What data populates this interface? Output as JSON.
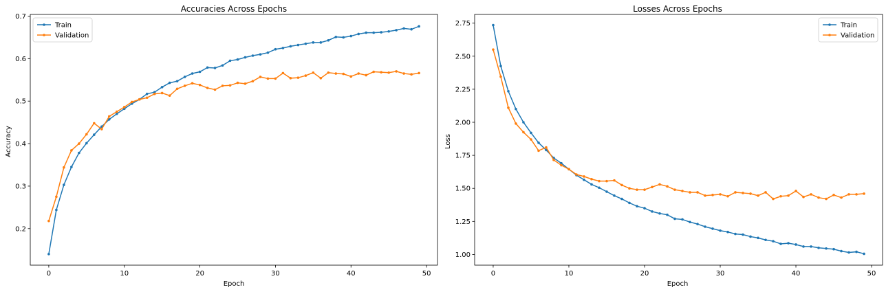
{
  "colors": {
    "train": "#1f77b4",
    "validation": "#ff7f0e"
  },
  "chart_data": [
    {
      "type": "line",
      "title": "Accuracies Across Epochs",
      "xlabel": "Epoch",
      "ylabel": "Accuracy",
      "xlim": [
        -2.45,
        51.45
      ],
      "ylim": [
        0.114,
        0.704
      ],
      "xticks": [
        0,
        10,
        20,
        30,
        40,
        50
      ],
      "yticks": [
        0.2,
        0.3,
        0.4,
        0.5,
        0.6,
        0.7
      ],
      "yticklabels": [
        "0.2",
        "0.3",
        "0.4",
        "0.5",
        "0.6",
        "0.7"
      ],
      "legend": "upper-left",
      "grid": false,
      "x": [
        0,
        1,
        2,
        3,
        4,
        5,
        6,
        7,
        8,
        9,
        10,
        11,
        12,
        13,
        14,
        15,
        16,
        17,
        18,
        19,
        20,
        21,
        22,
        23,
        24,
        25,
        26,
        27,
        28,
        29,
        30,
        31,
        32,
        33,
        34,
        35,
        36,
        37,
        38,
        39,
        40,
        41,
        42,
        43,
        44,
        45,
        46,
        47,
        48,
        49
      ],
      "series": [
        {
          "name": "Train",
          "color": "#1f77b4",
          "values": [
            0.14,
            0.244,
            0.303,
            0.345,
            0.378,
            0.401,
            0.421,
            0.44,
            0.457,
            0.47,
            0.482,
            0.494,
            0.504,
            0.517,
            0.521,
            0.533,
            0.543,
            0.547,
            0.557,
            0.565,
            0.569,
            0.579,
            0.578,
            0.584,
            0.595,
            0.598,
            0.603,
            0.607,
            0.61,
            0.614,
            0.622,
            0.625,
            0.629,
            0.632,
            0.635,
            0.638,
            0.638,
            0.643,
            0.651,
            0.65,
            0.653,
            0.658,
            0.661,
            0.661,
            0.662,
            0.664,
            0.667,
            0.671,
            0.669,
            0.676
          ]
        },
        {
          "name": "Validation",
          "color": "#ff7f0e",
          "values": [
            0.218,
            0.275,
            0.344,
            0.384,
            0.4,
            0.422,
            0.448,
            0.434,
            0.464,
            0.475,
            0.486,
            0.498,
            0.504,
            0.508,
            0.517,
            0.519,
            0.513,
            0.529,
            0.536,
            0.542,
            0.538,
            0.531,
            0.527,
            0.536,
            0.537,
            0.543,
            0.541,
            0.547,
            0.557,
            0.553,
            0.553,
            0.566,
            0.554,
            0.555,
            0.56,
            0.567,
            0.554,
            0.567,
            0.565,
            0.564,
            0.558,
            0.565,
            0.561,
            0.569,
            0.568,
            0.567,
            0.57,
            0.565,
            0.563,
            0.566
          ]
        }
      ]
    },
    {
      "type": "line",
      "title": "Losses Across Epochs",
      "xlabel": "Epoch",
      "ylabel": "Loss",
      "xlim": [
        -2.45,
        51.45
      ],
      "ylim": [
        0.919,
        2.816
      ],
      "xticks": [
        0,
        10,
        20,
        30,
        40,
        50
      ],
      "yticks": [
        1.0,
        1.25,
        1.5,
        1.75,
        2.0,
        2.25,
        2.5,
        2.75
      ],
      "yticklabels": [
        "1.00",
        "1.25",
        "1.50",
        "1.75",
        "2.00",
        "2.25",
        "2.50",
        "2.75"
      ],
      "legend": "upper-right",
      "grid": false,
      "x": [
        0,
        1,
        2,
        3,
        4,
        5,
        6,
        7,
        8,
        9,
        10,
        11,
        12,
        13,
        14,
        15,
        16,
        17,
        18,
        19,
        20,
        21,
        22,
        23,
        24,
        25,
        26,
        27,
        28,
        29,
        30,
        31,
        32,
        33,
        34,
        35,
        36,
        37,
        38,
        39,
        40,
        41,
        42,
        43,
        44,
        45,
        46,
        47,
        48,
        49
      ],
      "series": [
        {
          "name": "Train",
          "color": "#1f77b4",
          "values": [
            2.735,
            2.425,
            2.235,
            2.1,
            2.0,
            1.92,
            1.845,
            1.79,
            1.73,
            1.69,
            1.645,
            1.6,
            1.565,
            1.53,
            1.505,
            1.475,
            1.445,
            1.42,
            1.39,
            1.365,
            1.35,
            1.325,
            1.31,
            1.3,
            1.27,
            1.265,
            1.245,
            1.23,
            1.21,
            1.195,
            1.18,
            1.17,
            1.155,
            1.15,
            1.135,
            1.125,
            1.11,
            1.1,
            1.08,
            1.085,
            1.075,
            1.06,
            1.06,
            1.05,
            1.045,
            1.04,
            1.025,
            1.015,
            1.02,
            1.005
          ]
        },
        {
          "name": "Validation",
          "color": "#ff7f0e",
          "values": [
            2.55,
            2.345,
            2.11,
            1.99,
            1.925,
            1.87,
            1.785,
            1.81,
            1.715,
            1.675,
            1.645,
            1.605,
            1.59,
            1.57,
            1.555,
            1.555,
            1.56,
            1.525,
            1.5,
            1.49,
            1.49,
            1.51,
            1.53,
            1.515,
            1.49,
            1.48,
            1.47,
            1.47,
            1.445,
            1.45,
            1.455,
            1.44,
            1.47,
            1.465,
            1.46,
            1.445,
            1.47,
            1.42,
            1.44,
            1.445,
            1.48,
            1.435,
            1.455,
            1.43,
            1.42,
            1.45,
            1.43,
            1.455,
            1.455,
            1.46
          ]
        }
      ]
    }
  ]
}
